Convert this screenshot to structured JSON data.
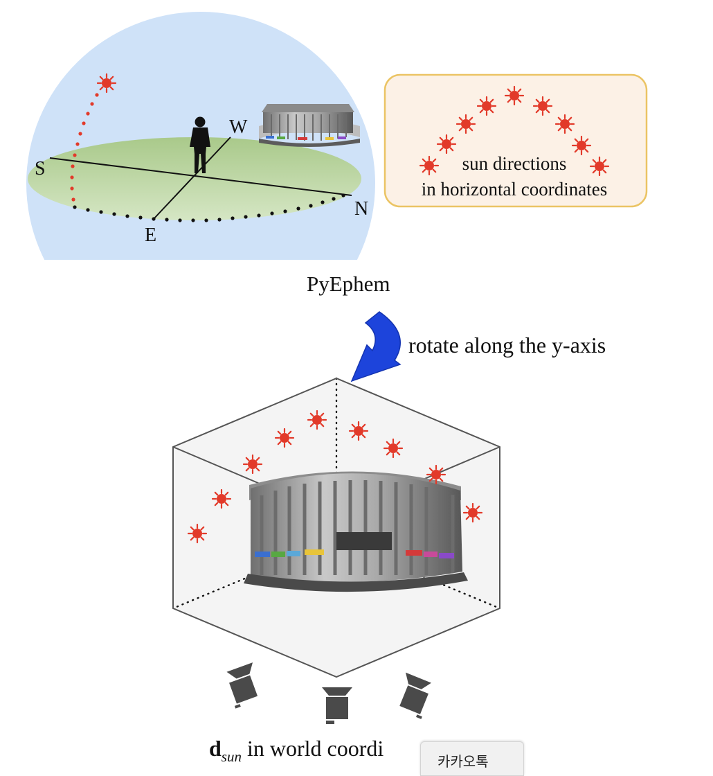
{
  "top_diagram": {
    "directions": {
      "south": "S",
      "west": "W",
      "north": "N",
      "east": "E"
    }
  },
  "sun_box": {
    "line1": "sun directions",
    "line2": "in horizontal coordinates"
  },
  "labels": {
    "pyephem": "PyEphem",
    "rotate": "rotate along the y-axis",
    "dsun_bold": "d",
    "dsun_sub": "sun",
    "dsun_rest": " in world coordi"
  },
  "overlay_tab": {
    "label": "카카오톡"
  },
  "colors": {
    "sky": "#cfe2f8",
    "ground": "#b9d49a",
    "sun": "#e23a2a",
    "sun_box_fill": "#fcf1e6",
    "sun_box_border": "#ebc464",
    "arrow": "#1d44db",
    "cube_edge": "#555555"
  },
  "icons": [
    "sun-icon",
    "person-silhouette-icon",
    "building-image",
    "camera-icon",
    "curved-arrow-icon"
  ]
}
